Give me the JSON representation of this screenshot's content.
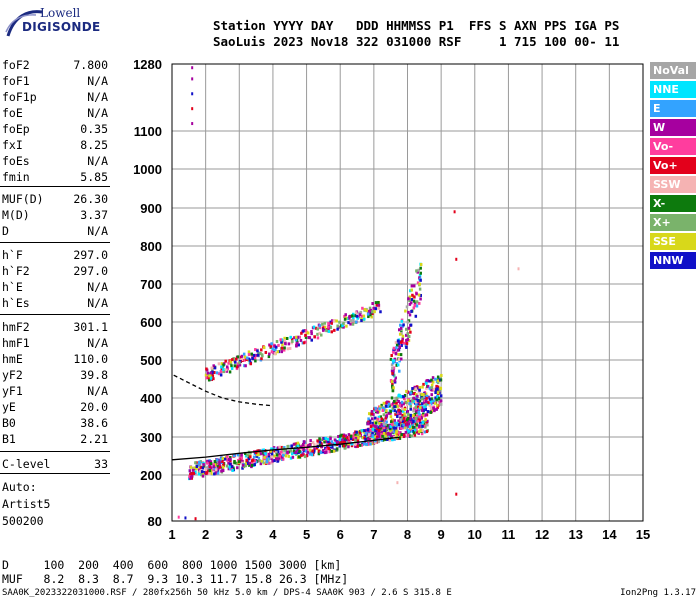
{
  "logo": {
    "top": "Lowell",
    "bottom": "DIGISONDE"
  },
  "header": {
    "line1": "Station YYYY DAY   DDD HHMMSS P1  FFS S AXN PPS IGA PS",
    "line2": "SaoLuis 2023 Nov18 322 031000 RSF     1 715 100 00- 11"
  },
  "params_group1": [
    {
      "label": "foF2",
      "value": "7.800"
    },
    {
      "label": "foF1",
      "value": "N/A"
    },
    {
      "label": "foF1p",
      "value": "N/A"
    },
    {
      "label": "foE",
      "value": "N/A"
    },
    {
      "label": "foEp",
      "value": "0.35"
    },
    {
      "label": "fxI",
      "value": "8.25"
    },
    {
      "label": "foEs",
      "value": "N/A"
    },
    {
      "label": "fmin",
      "value": "5.85"
    }
  ],
  "params_group2": [
    {
      "label": "MUF(D)",
      "value": "26.30"
    },
    {
      "label": "M(D)",
      "value": "3.37"
    },
    {
      "label": "D",
      "value": "N/A"
    }
  ],
  "params_group3": [
    {
      "label": "h`F",
      "value": "297.0"
    },
    {
      "label": "h`F2",
      "value": "297.0"
    },
    {
      "label": "h`E",
      "value": "N/A"
    },
    {
      "label": "h`Es",
      "value": "N/A"
    }
  ],
  "params_group4": [
    {
      "label": "hmF2",
      "value": "301.1"
    },
    {
      "label": "hmF1",
      "value": "N/A"
    },
    {
      "label": "hmE",
      "value": "110.0"
    },
    {
      "label": "yF2",
      "value": "39.8"
    },
    {
      "label": "yF1",
      "value": "N/A"
    },
    {
      "label": "yE",
      "value": "20.0"
    },
    {
      "label": "B0",
      "value": "38.6"
    },
    {
      "label": "B1",
      "value": "2.21"
    }
  ],
  "params_group5": [
    {
      "label": "C-level",
      "value": "33"
    }
  ],
  "autoscale": {
    "line1": "Auto:",
    "line2": "Artist5",
    "line3": "500200"
  },
  "muf_table": {
    "line1": "D     100  200  400  600  800 1000 1500 3000 [km]",
    "line2": "MUF   8.2  8.3  8.7  9.3 10.3 11.7 15.8 26.3 [MHz]"
  },
  "footer": {
    "left": "SAA0K_2023322031000.RSF / 280fx256h 50 kHz 5.0 km / DPS-4 SAA0K 903 / 2.6 S 315.8 E",
    "right": "Ion2Png 1.3.17"
  },
  "legend": [
    {
      "label": "NoVal",
      "color": "#a6a6a6",
      "text_color": "#ffffff"
    },
    {
      "label": "NNE",
      "color": "#00e5ff",
      "text_color": "#ffffff"
    },
    {
      "label": "E",
      "color": "#33a3ff",
      "text_color": "#ffffff"
    },
    {
      "label": "W",
      "color": "#a6009f",
      "text_color": "#ffffff"
    },
    {
      "label": "Vo-",
      "color": "#ff3d9e",
      "text_color": "#ffffff"
    },
    {
      "label": "Vo+",
      "color": "#e3001b",
      "text_color": "#ffffff"
    },
    {
      "label": "SSW",
      "color": "#f5b3b3",
      "text_color": "#ffffff"
    },
    {
      "label": "X-",
      "color": "#0d7a0d",
      "text_color": "#ffffff"
    },
    {
      "label": "X+",
      "color": "#7ab36b",
      "text_color": "#ffffff"
    },
    {
      "label": "SSE",
      "color": "#d8d81a",
      "text_color": "#ffffff"
    },
    {
      "label": "NNW",
      "color": "#1010c8",
      "text_color": "#ffffff"
    }
  ],
  "chart_data": {
    "type": "scatter",
    "title": "",
    "xlabel": "",
    "ylabel": "",
    "xlim": [
      1,
      15
    ],
    "ylim": [
      80,
      1280
    ],
    "x_ticks": [
      "1",
      "2",
      "3",
      "4",
      "5",
      "6",
      "7",
      "8",
      "9",
      "10",
      "11",
      "12",
      "13",
      "14",
      "15"
    ],
    "y_ticks": [
      "80",
      "200",
      "300",
      "400",
      "500",
      "600",
      "700",
      "800",
      "900",
      "1000",
      "1100",
      "1280"
    ],
    "y_tick_values": [
      80,
      200,
      300,
      400,
      500,
      600,
      700,
      800,
      900,
      1000,
      1100,
      1280
    ],
    "grid": true,
    "profile_curves": [
      {
        "name": "",
        "points": [
          [
            1.0,
            240
          ],
          [
            2.0,
            247
          ],
          [
            3.0,
            257
          ],
          [
            4.0,
            266
          ],
          [
            5.0,
            273
          ],
          [
            6.0,
            281
          ],
          [
            7.0,
            291
          ],
          [
            7.8,
            300
          ]
        ]
      },
      {
        "name": "",
        "points": [
          [
            1.05,
            460
          ],
          [
            1.5,
            440
          ],
          [
            2.0,
            418
          ],
          [
            2.5,
            400
          ],
          [
            3.0,
            390
          ],
          [
            3.5,
            384
          ],
          [
            4.0,
            380
          ]
        ]
      }
    ],
    "trace_regions": [
      {
        "name": "F2 trace",
        "x": [
          1.5,
          8.6
        ],
        "h_start": 210,
        "h_end": 330,
        "spread": 40,
        "density": 900
      },
      {
        "name": "F2 spread",
        "x": [
          6.8,
          9.0
        ],
        "h_start": 320,
        "h_end": 420,
        "spread": 90,
        "density": 500
      },
      {
        "name": "second hop",
        "x": [
          2.0,
          7.2
        ],
        "h_start": 460,
        "h_end": 640,
        "spread": 35,
        "density": 320
      },
      {
        "name": "spread-F top",
        "x": [
          7.5,
          8.4
        ],
        "h_start": 450,
        "h_end": 720,
        "spread": 120,
        "density": 150
      }
    ],
    "isolated_points": [
      {
        "x": 1.6,
        "y": 1270
      },
      {
        "x": 1.6,
        "y": 1240
      },
      {
        "x": 1.6,
        "y": 1200
      },
      {
        "x": 1.6,
        "y": 1160
      },
      {
        "x": 1.6,
        "y": 1120
      },
      {
        "x": 1.2,
        "y": 90
      },
      {
        "x": 1.4,
        "y": 88
      },
      {
        "x": 1.7,
        "y": 86
      },
      {
        "x": 9.4,
        "y": 890
      },
      {
        "x": 9.45,
        "y": 765
      },
      {
        "x": 11.3,
        "y": 740
      },
      {
        "x": 9.45,
        "y": 150
      },
      {
        "x": 7.7,
        "y": 180
      }
    ]
  }
}
